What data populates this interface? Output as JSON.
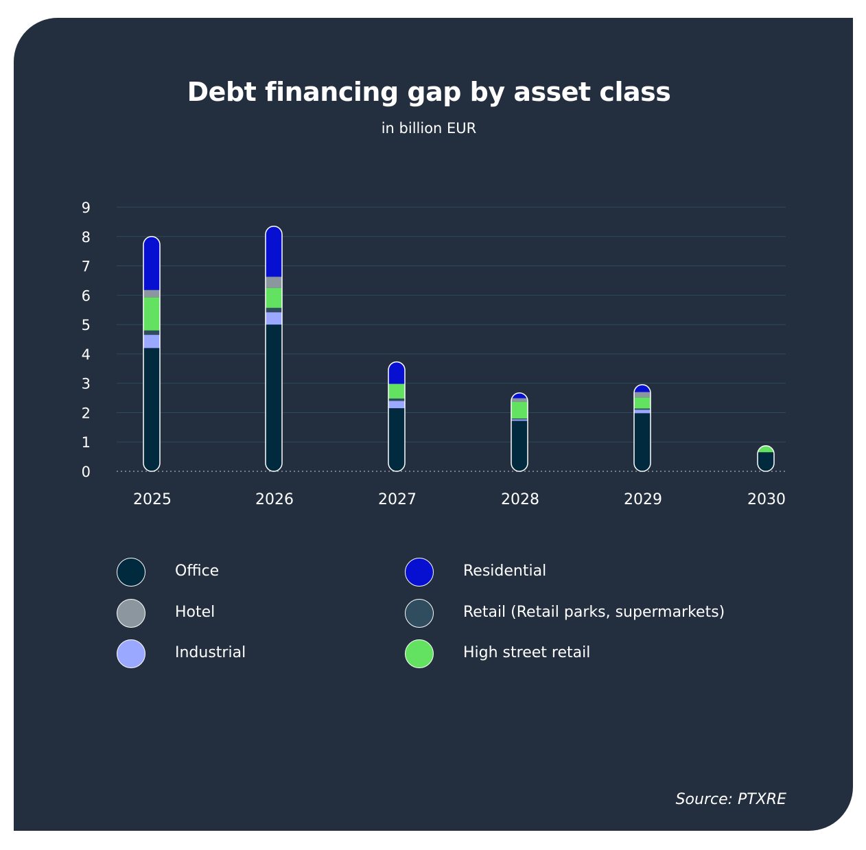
{
  "chart_data": {
    "type": "bar",
    "stacked": true,
    "title": "Debt financing gap by asset class",
    "subtitle": "in billion EUR",
    "categories": [
      "2025",
      "2026",
      "2027",
      "2028",
      "2029",
      "2030"
    ],
    "ylim": [
      0,
      9
    ],
    "yticks": [
      0,
      1,
      2,
      3,
      4,
      5,
      6,
      7,
      8,
      9
    ],
    "grid": true,
    "legend_position": "bottom",
    "series": [
      {
        "name": "Office",
        "color": "#012a3e",
        "values": [
          4.2,
          5.0,
          2.15,
          1.72,
          1.98,
          0.65
        ]
      },
      {
        "name": "Industrial",
        "color": "#9aa8ff",
        "values": [
          0.45,
          0.42,
          0.25,
          0.05,
          0.12,
          0.0
        ]
      },
      {
        "name": "Retail (Retail parks, supermarkets)",
        "color": "#2f4d5e",
        "values": [
          0.15,
          0.15,
          0.08,
          0.03,
          0.04,
          0.0
        ]
      },
      {
        "name": "High street retail",
        "color": "#63e262",
        "values": [
          1.13,
          0.68,
          0.5,
          0.57,
          0.38,
          0.22
        ]
      },
      {
        "name": "Hotel",
        "color": "#8b969e",
        "values": [
          0.25,
          0.38,
          0.0,
          0.12,
          0.18,
          0.0
        ]
      },
      {
        "name": "Residential",
        "color": "#0710d0",
        "values": [
          1.82,
          1.72,
          0.75,
          0.18,
          0.25,
          0.0
        ]
      }
    ]
  },
  "legend": [
    {
      "label": "Office",
      "color": "#012a3e"
    },
    {
      "label": "Residential",
      "color": "#0710d0"
    },
    {
      "label": "Hotel",
      "color": "#8b969e"
    },
    {
      "label": "Retail (Retail parks, supermarkets)",
      "color": "#2f4d5e"
    },
    {
      "label": "Industrial",
      "color": "#9aa8ff"
    },
    {
      "label": "High street retail",
      "color": "#63e262"
    }
  ],
  "source": "Source: PTXRE",
  "colors": {
    "background": "#232e3f",
    "grid": "#2f4a5a",
    "text": "#ffffff"
  }
}
